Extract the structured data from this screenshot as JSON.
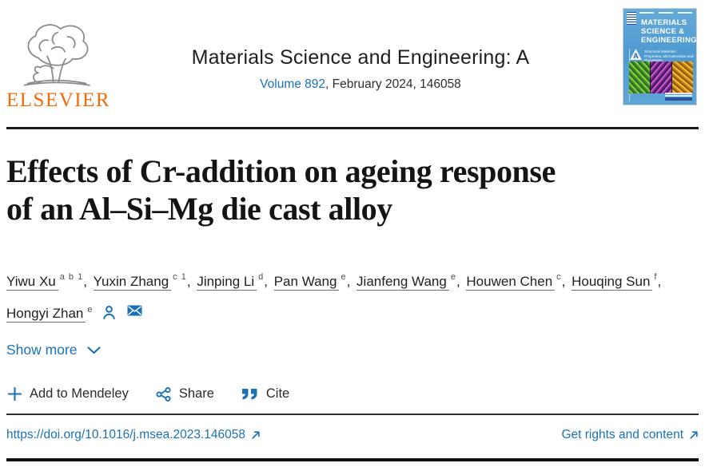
{
  "header": {
    "publisher_wordmark": "ELSEVIER",
    "journal_title": "Materials Science and Engineering: A",
    "volume_link": "Volume 892",
    "issue_info": ", February 2024, 146058",
    "cover": {
      "title": "MATERIALS\nSCIENCE &\nENGINEERING",
      "emblem_letter": "A",
      "subtitle": "Structural Materials: Properties, Microstructure and Processing"
    }
  },
  "article": {
    "title": "Effects of Cr-addition on ageing response\nof an Al–Si–Mg die cast alloy",
    "authors": [
      {
        "name": "Yiwu Xu",
        "sup": "a b 1"
      },
      {
        "name": "Yuxin Zhang",
        "sup": "c 1"
      },
      {
        "name": "Jinping Li",
        "sup": "d"
      },
      {
        "name": "Pan Wang",
        "sup": "e"
      },
      {
        "name": "Jianfeng Wang",
        "sup": "e"
      },
      {
        "name": "Houwen Chen",
        "sup": "c"
      },
      {
        "name": "Houqing Sun",
        "sup": "f"
      },
      {
        "name": "Hongyi Zhan",
        "sup": "e"
      }
    ],
    "show_more_label": "Show more"
  },
  "actions": {
    "mendeley_label": "Add to Mendeley",
    "share_label": "Share",
    "cite_label": "Cite"
  },
  "links": {
    "doi": "https://doi.org/10.1016/j.msea.2023.146058",
    "rights": "Get rights and content"
  },
  "colors": {
    "link_blue": "#1a72b4",
    "elsevier_orange": "#f06c0a",
    "divider_dark": "#1d1d1d",
    "text_dark": "#212121"
  }
}
